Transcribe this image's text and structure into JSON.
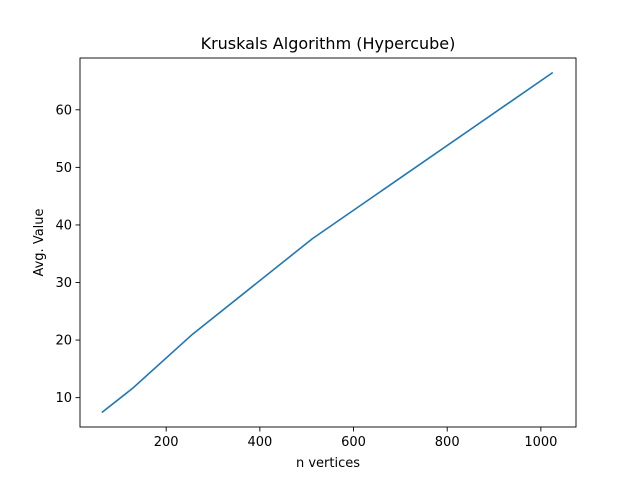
{
  "chart_data": {
    "type": "line",
    "title": "Kruskals Algorithm (Hypercube)",
    "xlabel": "n vertices",
    "ylabel": "Avg. Value",
    "xlim": [
      16,
      1075
    ],
    "ylim": [
      4.9,
      69.0
    ],
    "xticks": [
      200,
      400,
      600,
      800,
      1000
    ],
    "yticks": [
      10,
      20,
      30,
      40,
      50,
      60
    ],
    "grid": false,
    "line_color": "#1f77b4",
    "series": [
      {
        "x": [
          64,
          128,
          256,
          512,
          1024
        ],
        "values": [
          7.5,
          11.6,
          21.0,
          37.6,
          66.4
        ]
      }
    ]
  }
}
